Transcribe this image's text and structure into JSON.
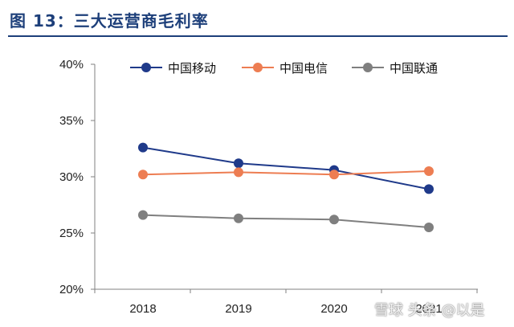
{
  "title": "图 13：三大运营商毛利率",
  "watermark": "雪球 头条 @以是",
  "chart_data": {
    "type": "line",
    "categories": [
      "2018",
      "2019",
      "2020",
      "2021"
    ],
    "series": [
      {
        "name": "中国移动",
        "color": "#1f3a8a",
        "values": [
          32.6,
          31.2,
          30.6,
          28.9
        ]
      },
      {
        "name": "中国电信",
        "color": "#ed7d52",
        "values": [
          30.2,
          30.4,
          30.2,
          30.5
        ]
      },
      {
        "name": "中国联通",
        "color": "#7f7f7f",
        "values": [
          26.6,
          26.3,
          26.2,
          25.5
        ]
      }
    ],
    "ylim": [
      20,
      40
    ],
    "yticks": [
      "20%",
      "25%",
      "30%",
      "35%",
      "40%"
    ],
    "legend": "top",
    "grid": false
  }
}
